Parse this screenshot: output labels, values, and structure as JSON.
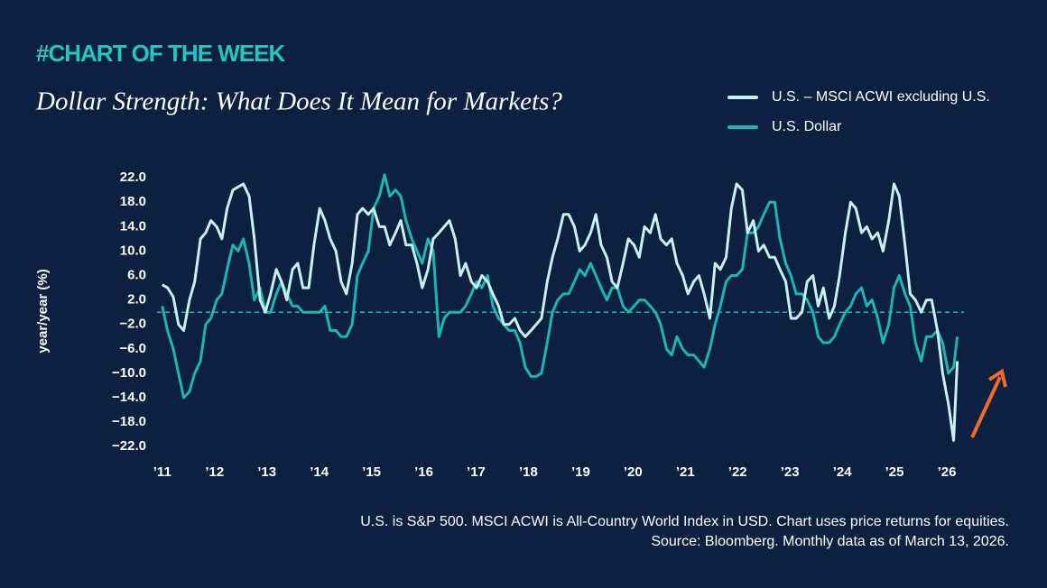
{
  "header": "#CHART OF THE WEEK",
  "chart_data": {
    "type": "line",
    "title": "Dollar Strength: What Does It Mean for Markets?",
    "ylabel": "year/year (%)",
    "footnote": [
      "U.S. is S&P 500. MSCI ACWI is All-Country World Index in USD. Chart uses price returns for equities.",
      "Source: Bloomberg. Monthly data as of March 13, 2026."
    ],
    "legend": "top-right",
    "reference_line": 0,
    "xlim": [
      2010.9,
      2026.5
    ],
    "ylim": [
      -23,
      23.5
    ],
    "xticks": [
      {
        "value": 2011,
        "label": "’11"
      },
      {
        "value": 2012,
        "label": "’12"
      },
      {
        "value": 2013,
        "label": "’13"
      },
      {
        "value": 2014,
        "label": "’14"
      },
      {
        "value": 2015,
        "label": "’15"
      },
      {
        "value": 2016,
        "label": "’16"
      },
      {
        "value": 2017,
        "label": "’17"
      },
      {
        "value": 2018,
        "label": "’18"
      },
      {
        "value": 2019,
        "label": "’19"
      },
      {
        "value": 2020,
        "label": "’20"
      },
      {
        "value": 2021,
        "label": "’21"
      },
      {
        "value": 2022,
        "label": "’22"
      },
      {
        "value": 2023,
        "label": "’23"
      },
      {
        "value": 2024,
        "label": "’24"
      },
      {
        "value": 2025,
        "label": "’25"
      },
      {
        "value": 2026,
        "label": "’26"
      }
    ],
    "yticks": [
      {
        "value": 22,
        "label": "22.0"
      },
      {
        "value": 18,
        "label": "18.0"
      },
      {
        "value": 14,
        "label": "14.0"
      },
      {
        "value": 10,
        "label": "10.0"
      },
      {
        "value": 6,
        "label": "6.0"
      },
      {
        "value": 2,
        "label": "2.0"
      },
      {
        "value": -2,
        "label": "−2.0"
      },
      {
        "value": -6,
        "label": "−6.0"
      },
      {
        "value": -10,
        "label": "−10.0"
      },
      {
        "value": -14,
        "label": "−14.0"
      },
      {
        "value": -18,
        "label": "−18.0"
      },
      {
        "value": -22,
        "label": "−22.0"
      }
    ],
    "x": [
      2011,
      2011.1,
      2011.21,
      2011.31,
      2011.41,
      2011.52,
      2011.62,
      2011.73,
      2011.83,
      2011.93,
      2012.04,
      2012.14,
      2012.24,
      2012.35,
      2012.45,
      2012.55,
      2012.66,
      2012.76,
      2012.87,
      2012.97,
      2013.07,
      2013.18,
      2013.28,
      2013.38,
      2013.49,
      2013.59,
      2013.69,
      2013.8,
      2013.9,
      2014.01,
      2014.11,
      2014.21,
      2014.32,
      2014.42,
      2014.52,
      2014.63,
      2014.73,
      2014.83,
      2014.94,
      2015.04,
      2015.15,
      2015.25,
      2015.35,
      2015.46,
      2015.56,
      2015.66,
      2015.77,
      2015.87,
      2015.97,
      2016.08,
      2016.18,
      2016.29,
      2016.39,
      2016.49,
      2016.6,
      2016.7,
      2016.8,
      2016.91,
      2017.01,
      2017.11,
      2017.22,
      2017.32,
      2017.43,
      2017.53,
      2017.63,
      2017.74,
      2017.84,
      2017.94,
      2018.05,
      2018.15,
      2018.25,
      2018.36,
      2018.46,
      2018.56,
      2018.67,
      2018.77,
      2018.88,
      2018.98,
      2019.08,
      2019.19,
      2019.29,
      2019.39,
      2019.5,
      2019.6,
      2019.7,
      2019.81,
      2019.91,
      2020.02,
      2020.12,
      2020.22,
      2020.33,
      2020.43,
      2020.53,
      2020.64,
      2020.74,
      2020.84,
      2020.95,
      2021.05,
      2021.16,
      2021.26,
      2021.36,
      2021.47,
      2021.57,
      2021.67,
      2021.78,
      2021.88,
      2021.98,
      2022.09,
      2022.19,
      2022.3,
      2022.4,
      2022.5,
      2022.61,
      2022.71,
      2022.81,
      2022.92,
      2023.02,
      2023.12,
      2023.23,
      2023.33,
      2023.44,
      2023.54,
      2023.64,
      2023.75,
      2023.85,
      2023.95,
      2024.06,
      2024.16,
      2024.26,
      2024.37,
      2024.47,
      2024.57,
      2024.68,
      2024.78,
      2024.89,
      2024.99,
      2025.09,
      2025.2,
      2025.3,
      2025.4,
      2025.51,
      2025.61,
      2025.71,
      2025.82,
      2025.92,
      2026.03,
      2026.13,
      2026.2
    ],
    "series": [
      {
        "name": "U.S. – MSCI ACWI excluding U.S.",
        "color": "#c6f1ee",
        "values": [
          4.5,
          4,
          2.5,
          -2,
          -3,
          2,
          5,
          12,
          13,
          15,
          14,
          12,
          17,
          20,
          20.5,
          21,
          19,
          12,
          2,
          0,
          3,
          7,
          5,
          2,
          7,
          8,
          4,
          4,
          11,
          17,
          15,
          12,
          10,
          5,
          3,
          8,
          16,
          17,
          16,
          17,
          14,
          14,
          11,
          13,
          15,
          11,
          11,
          8,
          4,
          7,
          12,
          13,
          14,
          15,
          12,
          6,
          8,
          5,
          4,
          6,
          5,
          3,
          1,
          -2,
          -2,
          -1,
          -3,
          -4,
          -3,
          -2,
          -1,
          5,
          9,
          12,
          16,
          16,
          14,
          10,
          11,
          13,
          16,
          11,
          9,
          5,
          4,
          8,
          12,
          11,
          9,
          14,
          13,
          16,
          12,
          11,
          12,
          8,
          6,
          3,
          5,
          6,
          3,
          -1,
          8,
          7,
          9,
          17,
          21,
          20,
          13,
          15,
          10,
          11,
          9,
          9,
          7,
          5,
          -1,
          -1,
          0,
          5,
          6,
          1,
          4,
          -1,
          1,
          6,
          13,
          18,
          17,
          13,
          14,
          12,
          13,
          10,
          15,
          21,
          19,
          11,
          3,
          2,
          0,
          2,
          2,
          -3,
          -10,
          -15,
          -21,
          -8
        ]
      },
      {
        "name": "U.S. Dollar",
        "color": "#1bb5b5",
        "values": [
          1,
          -3,
          -6,
          -10,
          -14,
          -13,
          -10,
          -8,
          -2,
          -1,
          2,
          3,
          7,
          11,
          10,
          12,
          8,
          2,
          4,
          0,
          0,
          3,
          5,
          3,
          1,
          1,
          0,
          0,
          0,
          0,
          1,
          -3,
          -3,
          -4,
          -4,
          -2,
          6,
          8,
          10,
          17,
          19,
          22.5,
          19,
          20,
          19,
          15,
          12,
          10,
          8,
          12,
          10,
          -4,
          -1,
          0,
          0,
          0,
          1,
          3,
          5,
          4,
          6,
          1,
          -1,
          -2,
          -3,
          -3,
          -5,
          -9,
          -10.5,
          -10.5,
          -10,
          -5,
          0,
          2,
          3,
          3,
          5,
          7,
          6,
          8,
          6,
          4,
          2,
          4,
          4,
          1,
          0,
          1,
          2,
          2,
          1,
          0,
          -2,
          -6,
          -7,
          -4,
          -6,
          -7,
          -7,
          -8,
          -9,
          -6,
          -2,
          1,
          5,
          6,
          6,
          7,
          13,
          13,
          14,
          16,
          18,
          18,
          12,
          8,
          6,
          3,
          3,
          2,
          0,
          -4,
          -5,
          -5,
          -4,
          -2,
          0,
          1,
          3,
          4,
          1,
          2,
          -1,
          -5,
          -2,
          4,
          6,
          3,
          1,
          -5,
          -8,
          -4,
          -4,
          -3,
          -5,
          -10,
          -9,
          -4
        ]
      }
    ]
  }
}
